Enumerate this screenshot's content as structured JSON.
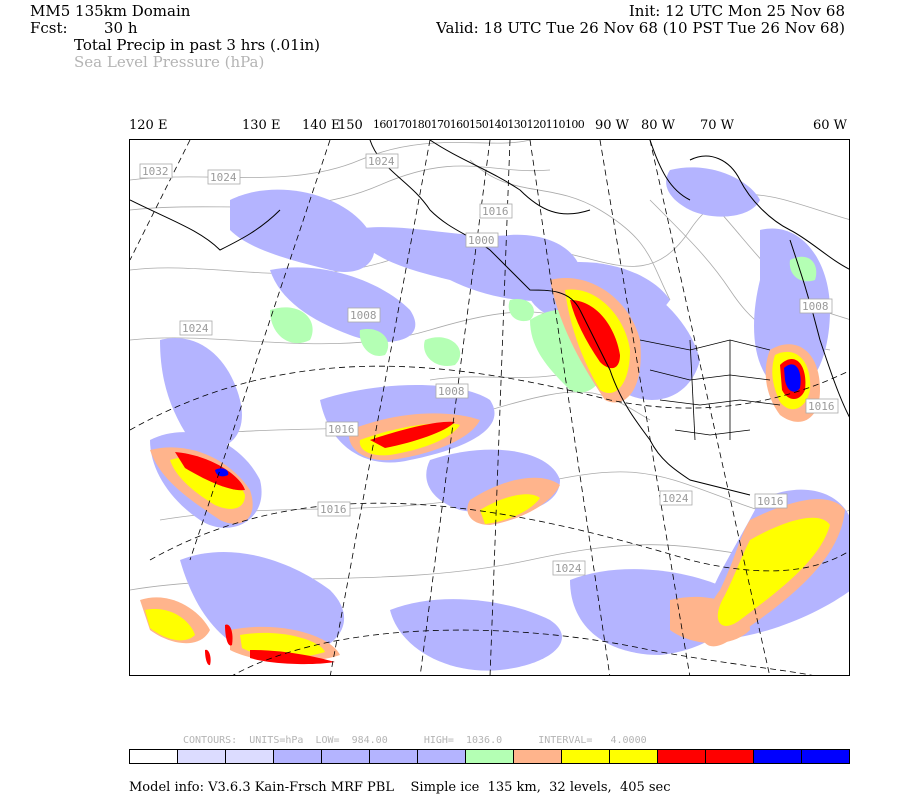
{
  "header": {
    "domain": "MM5 135km Domain",
    "fcst_label": "Fcst:",
    "fcst_value": "30 h",
    "init": "Init: 12 UTC Mon 25 Nov 68",
    "valid": "Valid: 18 UTC Tue 26 Nov 68 (10 PST Tue 26 Nov 68)",
    "field1": "Total Precip in past 3 hrs (.01in)",
    "field2": "Sea Level Pressure (hPa)"
  },
  "lon_labels": [
    {
      "text": "120 E"
    },
    {
      "text": "130 E"
    },
    {
      "text": "140 E"
    },
    {
      "text": "150"
    },
    {
      "text": "160170180170160150140130120110100"
    },
    {
      "text": "90 W"
    },
    {
      "text": "80 W"
    },
    {
      "text": "70 W"
    },
    {
      "text": "60 W"
    }
  ],
  "pressure_labels": [
    "1032",
    "1024",
    "1024",
    "1016",
    "1000",
    "1024",
    "1008",
    "1008",
    "1016",
    "1024",
    "1024",
    "1016",
    "1008",
    "1016",
    "1016"
  ],
  "contour_info": {
    "contours": "CONTOURS:",
    "units": "UNITS=hPa",
    "low": "LOW=  984.00",
    "high": "HIGH=  1036.0",
    "interval": "INTERVAL=   4.0000"
  },
  "colorbar": [
    "#ffffff",
    "#dcdcff",
    "#dcdcff",
    "#b4b4ff",
    "#b4b4ff",
    "#b4b4ff",
    "#b4b4ff",
    "#b4ffb4",
    "#ffb48c",
    "#ffff00",
    "#ffff00",
    "#ff0000",
    "#ff0000",
    "#0000ff",
    "#0000ff"
  ],
  "model_info": "Model info: V3.6.3 Kain-Frsch MRF PBL    Simple ice  135 km,  32 levels,  405 sec",
  "colors": {
    "lav": "#b4b4ff",
    "lav_light": "#dcdcff",
    "green": "#b4ffb4",
    "peach": "#ffb48c",
    "yellow": "#ffff00",
    "red": "#ff0000",
    "blue": "#0000ff"
  }
}
